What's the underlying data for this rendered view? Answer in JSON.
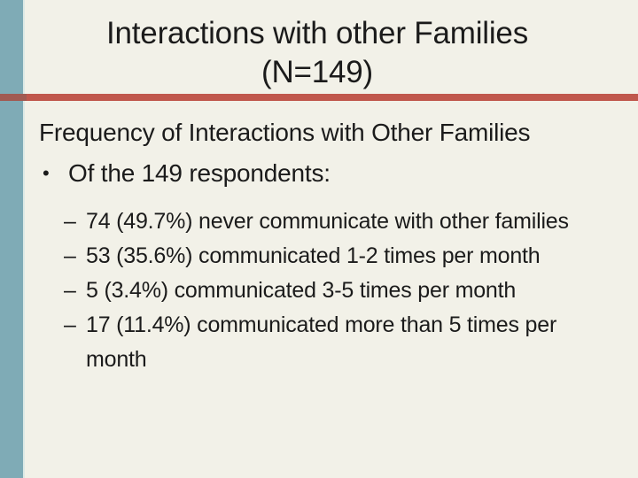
{
  "slide": {
    "title_line1": "Interactions with other Families",
    "title_line2": "(N=149)",
    "heading": "Frequency of Interactions with Other Families",
    "bullet": {
      "marker": "•",
      "text": "Of the 149 respondents:"
    },
    "sub_bullets": [
      {
        "marker": "–",
        "text": "74 (49.7%) never communicate with other families"
      },
      {
        "marker": "–",
        "text": "53 (35.6%) communicated 1-2 times per month"
      },
      {
        "marker": "–",
        "text": "5 (3.4%) communicated 3-5 times per month"
      },
      {
        "marker": "–",
        "text": "17 (11.4%) communicated more than 5 times per month"
      }
    ],
    "colors": {
      "background": "#f2f1e8",
      "stripe": "#7fabb6",
      "stripe_edge": "#dde9e6",
      "divider": "#c0574c",
      "divider_over_stripe": "#a15a52",
      "text": "#1b1b1b"
    }
  }
}
